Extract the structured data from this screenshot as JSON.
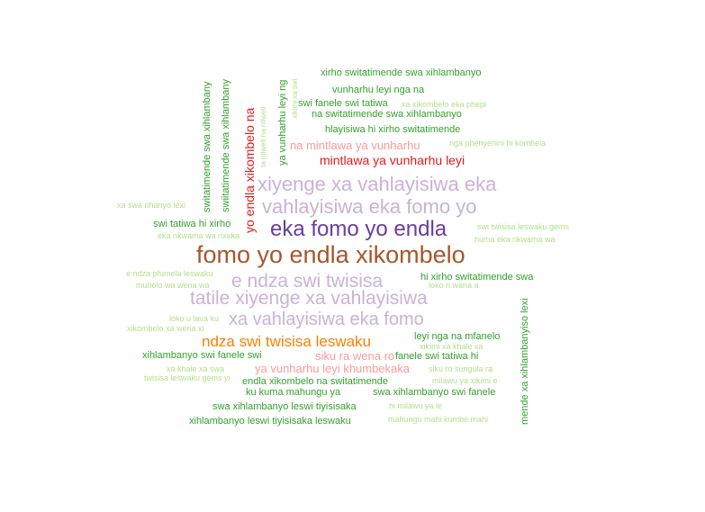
{
  "palette": {
    "brown": "#a6572a",
    "purple": "#6a3d9a",
    "lavender": "#cab2d6",
    "orange": "#ff7f00",
    "red": "#e31a1c",
    "pink": "#fb9a99",
    "green": "#33a02c",
    "lightgreen": "#b2df8a"
  },
  "words": [
    {
      "text": "fomo yo endla xikombelo",
      "color": "brown"
    },
    {
      "text": "eka fomo yo endla",
      "color": "purple"
    },
    {
      "text": "xiyenge xa vahlayisiwa eka",
      "color": "lavender"
    },
    {
      "text": "vahlayisiwa eka fomo yo",
      "color": "lavender"
    },
    {
      "text": "e ndza swi twisisa",
      "color": "lavender"
    },
    {
      "text": "tatile xiyenge xa vahlayisiwa",
      "color": "lavender"
    },
    {
      "text": "xa vahlayisiwa eka fomo",
      "color": "lavender"
    },
    {
      "text": "ndza swi twisisa leswaku",
      "color": "orange"
    },
    {
      "text": "mintlawa ya vunharhu leyi",
      "color": "red"
    },
    {
      "text": "yo endla xikombelo na",
      "color": "red"
    },
    {
      "text": "na mintlawa ya vunharhu",
      "color": "pink"
    },
    {
      "text": "ya vunharhu leyi khumbekaka",
      "color": "pink"
    },
    {
      "text": "siku ra wena ro",
      "color": "pink"
    },
    {
      "text": "xirho switatimende swa xihlambanyo",
      "color": "green"
    },
    {
      "text": "vunharhu leyi nga na",
      "color": "green"
    },
    {
      "text": "swi fanele swi tatiwa",
      "color": "green"
    },
    {
      "text": "na switatimende swa xihlambanyo",
      "color": "green"
    },
    {
      "text": "hlayisiwa hi xirho switatimende",
      "color": "green"
    },
    {
      "text": "swi tatiwa hi xirho",
      "color": "green"
    },
    {
      "text": "hi xirho switatimende swa",
      "color": "green"
    },
    {
      "text": "leyi nga na mfanelo",
      "color": "green"
    },
    {
      "text": "xihlambanyo swi fanele swi",
      "color": "green"
    },
    {
      "text": "fanele swi tatiwa hi",
      "color": "green"
    },
    {
      "text": "endla xikombelo na switatimende",
      "color": "green"
    },
    {
      "text": "ku kuma mahungu ya",
      "color": "green"
    },
    {
      "text": "swa xihlambanyo swi fanele",
      "color": "green"
    },
    {
      "text": "swa xihlambanyo leswi tiyisisaka",
      "color": "green"
    },
    {
      "text": "xihlambanyo leswi tiyisisaka leswaku",
      "color": "green"
    },
    {
      "text": "switatimende swa xihlambany",
      "color": "green"
    },
    {
      "text": "swiitatimende swa xihlambany",
      "color": "green"
    },
    {
      "text": "ya vunharhu leyi ng",
      "color": "green"
    },
    {
      "text": "mende xa xihlambanyiso lexi",
      "color": "green"
    },
    {
      "text": "xa xikombelo eka phepi",
      "color": "lightgreen"
    },
    {
      "text": "nga phenyenini hi kombela",
      "color": "lightgreen"
    },
    {
      "text": "xa swa rihanyo lexi",
      "color": "lightgreen"
    },
    {
      "text": "eka nkwama wa rixaka",
      "color": "lightgreen"
    },
    {
      "text": "swi twisisa leswaku gems",
      "color": "lightgreen"
    },
    {
      "text": "huma eka nkwama wa",
      "color": "lightgreen"
    },
    {
      "text": "e ndza pfumela leswaku",
      "color": "lightgreen"
    },
    {
      "text": "muholo wa wena wa",
      "color": "lightgreen"
    },
    {
      "text": "loko n wana a",
      "color": "lightgreen"
    },
    {
      "text": "loko u lava ku",
      "color": "lightgreen"
    },
    {
      "text": "xikombelo xa wena xi",
      "color": "lightgreen"
    },
    {
      "text": "xikimi xa khale xa",
      "color": "lightgreen"
    },
    {
      "text": "xa khale xa swa",
      "color": "lightgreen"
    },
    {
      "text": "twisisa leswaku gems yi",
      "color": "lightgreen"
    },
    {
      "text": "siku ro sungula ra",
      "color": "lightgreen"
    },
    {
      "text": "milawu ya xikimi e",
      "color": "lightgreen"
    },
    {
      "text": "hi milawu ya le",
      "color": "lightgreen"
    },
    {
      "text": "mahungu mahi kumbe mahi",
      "color": "lightgreen"
    },
    {
      "text": "ta ntiweti na ntiweti",
      "color": "lightgreen"
    },
    {
      "text": "xikimi xa swi",
      "color": "lightgreen"
    }
  ]
}
